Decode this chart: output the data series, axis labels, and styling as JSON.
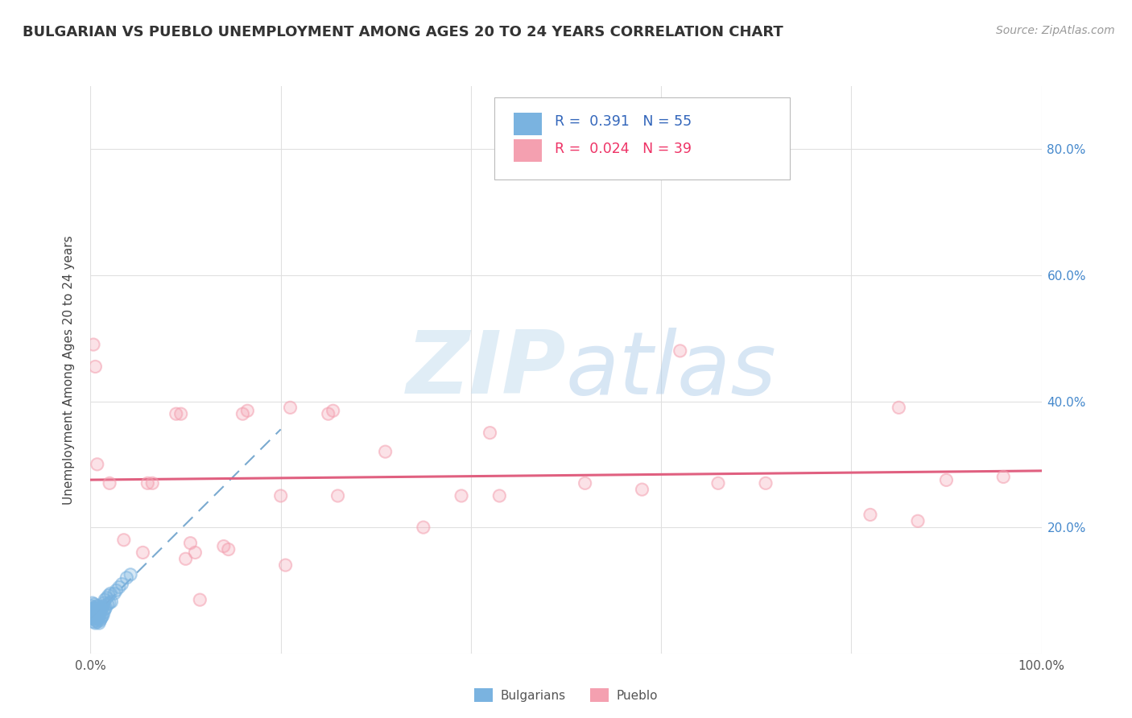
{
  "title": "BULGARIAN VS PUEBLO UNEMPLOYMENT AMONG AGES 20 TO 24 YEARS CORRELATION CHART",
  "source": "Source: ZipAtlas.com",
  "ylabel": "Unemployment Among Ages 20 to 24 years",
  "xlim": [
    0.0,
    1.0
  ],
  "ylim": [
    0.0,
    0.9
  ],
  "xtick_positions": [
    0.0,
    0.2,
    0.4,
    0.6,
    0.8,
    1.0
  ],
  "xtick_labels": [
    "0.0%",
    "",
    "",
    "",
    "",
    "100.0%"
  ],
  "ytick_positions": [
    0.0,
    0.2,
    0.4,
    0.6,
    0.8
  ],
  "ytick_labels_right": [
    "",
    "20.0%",
    "40.0%",
    "60.0%",
    "80.0%"
  ],
  "bg_color": "#ffffff",
  "grid_color": "#e0e0e0",
  "blue_color": "#7ab3e0",
  "pink_color": "#f4a0b0",
  "trendline1_color": "#7aaad0",
  "trendline2_color": "#e06080",
  "watermark_color": "#d5eaf8",
  "bulgarians_x": [
    0.0,
    0.0,
    0.0,
    0.001,
    0.001,
    0.001,
    0.002,
    0.002,
    0.002,
    0.002,
    0.003,
    0.003,
    0.003,
    0.004,
    0.004,
    0.004,
    0.005,
    0.005,
    0.005,
    0.006,
    0.006,
    0.006,
    0.007,
    0.007,
    0.007,
    0.008,
    0.008,
    0.008,
    0.009,
    0.009,
    0.01,
    0.01,
    0.011,
    0.011,
    0.012,
    0.012,
    0.013,
    0.013,
    0.014,
    0.014,
    0.015,
    0.015,
    0.016,
    0.017,
    0.018,
    0.019,
    0.02,
    0.021,
    0.022,
    0.025,
    0.027,
    0.03,
    0.033,
    0.038,
    0.042
  ],
  "bulgarians_y": [
    0.055,
    0.06,
    0.07,
    0.058,
    0.065,
    0.075,
    0.055,
    0.062,
    0.07,
    0.08,
    0.05,
    0.06,
    0.072,
    0.055,
    0.065,
    0.078,
    0.048,
    0.058,
    0.068,
    0.052,
    0.062,
    0.075,
    0.05,
    0.06,
    0.072,
    0.055,
    0.065,
    0.075,
    0.048,
    0.058,
    0.052,
    0.065,
    0.055,
    0.068,
    0.058,
    0.072,
    0.06,
    0.075,
    0.065,
    0.08,
    0.07,
    0.085,
    0.072,
    0.088,
    0.078,
    0.092,
    0.08,
    0.095,
    0.082,
    0.095,
    0.1,
    0.105,
    0.11,
    0.12,
    0.125
  ],
  "pueblo_x": [
    0.003,
    0.005,
    0.007,
    0.02,
    0.035,
    0.055,
    0.06,
    0.065,
    0.09,
    0.095,
    0.1,
    0.105,
    0.11,
    0.115,
    0.14,
    0.145,
    0.16,
    0.165,
    0.2,
    0.205,
    0.21,
    0.25,
    0.255,
    0.26,
    0.31,
    0.35,
    0.39,
    0.42,
    0.43,
    0.52,
    0.58,
    0.62,
    0.66,
    0.71,
    0.82,
    0.85,
    0.87,
    0.9,
    0.96
  ],
  "pueblo_y": [
    0.49,
    0.455,
    0.3,
    0.27,
    0.18,
    0.16,
    0.27,
    0.27,
    0.38,
    0.38,
    0.15,
    0.175,
    0.16,
    0.085,
    0.17,
    0.165,
    0.38,
    0.385,
    0.25,
    0.14,
    0.39,
    0.38,
    0.385,
    0.25,
    0.32,
    0.2,
    0.25,
    0.35,
    0.25,
    0.27,
    0.26,
    0.48,
    0.27,
    0.27,
    0.22,
    0.39,
    0.21,
    0.275,
    0.28
  ],
  "trendline1_x0": 0.0,
  "trendline1_x1": 0.2,
  "trendline2_x0": 0.0,
  "trendline2_x1": 1.0,
  "R1": 0.391,
  "N1": 55,
  "R2": 0.024,
  "N2": 39
}
